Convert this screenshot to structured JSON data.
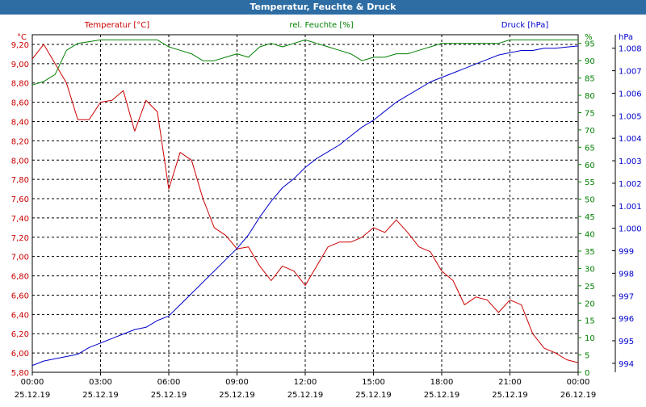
{
  "window": {
    "title": "Temperatur, Feuchte & Druck"
  },
  "chart_data": {
    "type": "line",
    "title": "Temperatur, Feuchte & Druck",
    "x": [
      "00:00",
      "00:30",
      "01:00",
      "01:30",
      "02:00",
      "02:30",
      "03:00",
      "03:30",
      "04:00",
      "04:30",
      "05:00",
      "05:30",
      "06:00",
      "06:30",
      "07:00",
      "07:30",
      "08:00",
      "08:30",
      "09:00",
      "09:30",
      "10:00",
      "10:30",
      "11:00",
      "11:30",
      "12:00",
      "12:30",
      "13:00",
      "13:30",
      "14:00",
      "14:30",
      "15:00",
      "15:30",
      "16:00",
      "16:30",
      "17:00",
      "17:30",
      "18:00",
      "18:30",
      "19:00",
      "19:30",
      "20:00",
      "20:30",
      "21:00",
      "21:30",
      "22:00",
      "22:30",
      "23:00",
      "23:30",
      "00:00"
    ],
    "x_ticks": [
      {
        "time": "00:00",
        "date": "25.12.19"
      },
      {
        "time": "03:00",
        "date": "25.12.19"
      },
      {
        "time": "06:00",
        "date": "25.12.19"
      },
      {
        "time": "09:00",
        "date": "25.12.19"
      },
      {
        "time": "12:00",
        "date": "25.12.19"
      },
      {
        "time": "15:00",
        "date": "25.12.19"
      },
      {
        "time": "18:00",
        "date": "25.12.19"
      },
      {
        "time": "21:00",
        "date": "25.12.19"
      },
      {
        "time": "00:00",
        "date": "26.12.19"
      }
    ],
    "axes": {
      "temperature": {
        "label": "Temperatur [°C]",
        "unit": "°C",
        "ylim": [
          5.8,
          9.3
        ],
        "ticks": [
          "5,80",
          "6,00",
          "6,20",
          "6,40",
          "6,60",
          "6,80",
          "7,00",
          "7,20",
          "7,40",
          "7,60",
          "7,80",
          "8,00",
          "8,20",
          "8,40",
          "8,60",
          "8,80",
          "9,00",
          "9,20"
        ],
        "color": "#cc0000"
      },
      "humidity": {
        "label": "rel. Feuchte [%]",
        "unit": "%",
        "ylim": [
          0,
          97.5
        ],
        "ticks": [
          "0",
          "5",
          "10",
          "15",
          "20",
          "25",
          "30",
          "35",
          "40",
          "45",
          "50",
          "55",
          "60",
          "65",
          "70",
          "75",
          "80",
          "85",
          "90",
          "95"
        ],
        "color": "#008000"
      },
      "pressure": {
        "label": "Druck [hPa]",
        "unit": "hPa",
        "ylim": [
          993.6,
          1008.6
        ],
        "ticks": [
          "994",
          "995",
          "996",
          "997",
          "998",
          "999",
          "1.000",
          "1.001",
          "1.002",
          "1.003",
          "1.004",
          "1.005",
          "1.006",
          "1.007",
          "1.008"
        ],
        "color": "#0000cc"
      }
    },
    "series": [
      {
        "name": "Temperatur [°C]",
        "axis": "temperature",
        "color": "#cc0000",
        "values": [
          9.05,
          9.2,
          9.0,
          8.8,
          8.42,
          8.42,
          8.6,
          8.62,
          8.72,
          8.3,
          8.62,
          8.5,
          7.7,
          8.08,
          8.0,
          7.6,
          7.3,
          7.22,
          7.08,
          7.1,
          6.9,
          6.75,
          6.9,
          6.85,
          6.7,
          6.9,
          7.1,
          7.15,
          7.15,
          7.2,
          7.3,
          7.25,
          7.38,
          7.25,
          7.1,
          7.05,
          6.85,
          6.75,
          6.5,
          6.58,
          6.55,
          6.42,
          6.55,
          6.5,
          6.2,
          6.05,
          6.0,
          5.93,
          5.9
        ]
      },
      {
        "name": "rel. Feuchte [%]",
        "axis": "humidity",
        "color": "#008000",
        "values": [
          83,
          84,
          86,
          93,
          95,
          95.5,
          96,
          96,
          96,
          96,
          96,
          96,
          94,
          93,
          92,
          90,
          90,
          91,
          92,
          91,
          94,
          95,
          94,
          95,
          96,
          95,
          94,
          93,
          92,
          90,
          91,
          91,
          92,
          92,
          93,
          94,
          95,
          95,
          95,
          95,
          95,
          95,
          96,
          96,
          96,
          96,
          96,
          96,
          96
        ]
      },
      {
        "name": "Druck [hPa]",
        "axis": "pressure",
        "color": "#0000cc",
        "values": [
          993.9,
          994.1,
          994.2,
          994.3,
          994.4,
          994.7,
          994.9,
          995.1,
          995.3,
          995.5,
          995.6,
          995.9,
          996.1,
          996.6,
          997.1,
          997.6,
          998.1,
          998.6,
          999.1,
          999.7,
          1000.5,
          1001.2,
          1001.8,
          1002.2,
          1002.7,
          1003.1,
          1003.4,
          1003.7,
          1004.1,
          1004.5,
          1004.8,
          1005.2,
          1005.6,
          1005.9,
          1006.2,
          1006.5,
          1006.7,
          1006.9,
          1007.1,
          1007.3,
          1007.5,
          1007.7,
          1007.8,
          1007.9,
          1007.9,
          1008.0,
          1008.0,
          1008.05,
          1008.1
        ]
      }
    ],
    "grid": true
  }
}
